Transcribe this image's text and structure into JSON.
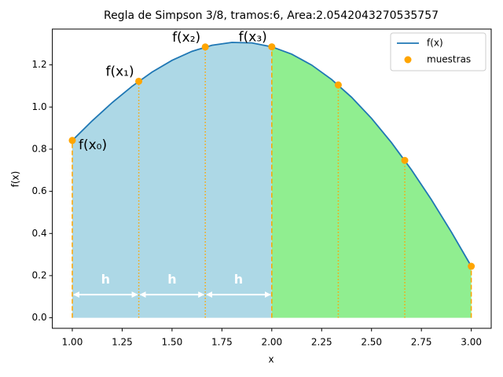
{
  "chart_data": {
    "type": "line",
    "title": "Regla de Simpson 3/8, tramos:6, Area:2.0542043270535757",
    "xlabel": "x",
    "ylabel": "f(x)",
    "x": [
      1.0,
      1.1,
      1.2,
      1.3,
      1.4,
      1.5,
      1.6,
      1.7,
      1.8,
      1.9,
      2.0,
      2.1,
      2.2,
      2.3,
      2.4,
      2.5,
      2.6,
      2.7,
      2.8,
      2.9,
      3.0
    ],
    "series": [
      {
        "name": "f(x)",
        "color": "#1f77b4",
        "values": [
          0.8415,
          0.9347,
          1.021,
          1.0987,
          1.1659,
          1.2217,
          1.2644,
          1.293,
          1.3065,
          1.3044,
          1.2859,
          1.2509,
          1.1992,
          1.1309,
          1.0465,
          0.9463,
          0.8312,
          0.7023,
          0.5606,
          0.4073,
          0.2444
        ]
      }
    ],
    "samples": {
      "name": "muestras",
      "color": "#ffa500",
      "x": [
        1.0,
        1.3333,
        1.6667,
        2.0,
        2.3333,
        2.6667,
        3.0
      ],
      "values": [
        0.8415,
        1.1223,
        1.2851,
        1.2859,
        1.1047,
        0.7468,
        0.2444
      ]
    },
    "fill_colors": [
      "#add8e6",
      "#90ee90"
    ],
    "point_labels": [
      "f(x₀)",
      "f(x₁)",
      "f(x₂)",
      "f(x₃)"
    ],
    "interval_labels": [
      "h",
      "h",
      "h"
    ],
    "xlim": [
      0.9,
      3.1
    ],
    "ylim": [
      -0.05,
      1.37
    ],
    "xticks": [
      {
        "value": 1.0,
        "label": "1.00"
      },
      {
        "value": 1.25,
        "label": "1.25"
      },
      {
        "value": 1.5,
        "label": "1.50"
      },
      {
        "value": 1.75,
        "label": "1.75"
      },
      {
        "value": 2.0,
        "label": "2.00"
      },
      {
        "value": 2.25,
        "label": "2.25"
      },
      {
        "value": 2.5,
        "label": "2.50"
      },
      {
        "value": 2.75,
        "label": "2.75"
      },
      {
        "value": 3.0,
        "label": "3.00"
      }
    ],
    "yticks": [
      {
        "value": 0,
        "label": "0.0"
      },
      {
        "value": 0.2,
        "label": "0.2"
      },
      {
        "value": 0.4,
        "label": "0.4"
      },
      {
        "value": 0.6,
        "label": "0.6"
      },
      {
        "value": 0.8,
        "label": "0.8"
      },
      {
        "value": 1.0,
        "label": "1.0"
      },
      {
        "value": 1.2,
        "label": "1.2"
      }
    ],
    "legend": "upper right"
  }
}
